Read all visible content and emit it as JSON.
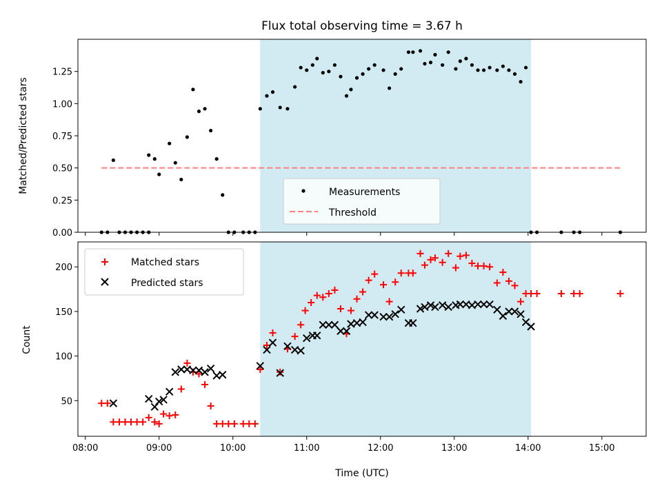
{
  "chart_data": {
    "title": "Flux total observing time = 3.67 h",
    "xlabel": "Time (UTC)",
    "x_ticks": [
      "08:00",
      "09:00",
      "10:00",
      "11:00",
      "12:00",
      "13:00",
      "14:00",
      "15:00"
    ],
    "x_tick_hours": [
      8,
      9,
      10,
      11,
      12,
      13,
      14,
      15
    ],
    "xlim_hours": [
      7.9,
      15.6
    ],
    "shaded_interval_hours": [
      10.37,
      14.04
    ],
    "colors": {
      "shade": "#add8e6",
      "measurements": "#000000",
      "threshold": "#ff7f7f",
      "matched": "#ff0000",
      "predicted": "#000000"
    },
    "panels": [
      {
        "type": "scatter",
        "ylabel": "Matched/Predicted stars",
        "ylim": [
          0,
          1.5
        ],
        "y_ticks": [
          "0.00",
          "0.25",
          "0.50",
          "0.75",
          "1.00",
          "1.25"
        ],
        "y_tick_values": [
          0,
          0.25,
          0.5,
          0.75,
          1.0,
          1.25
        ],
        "threshold": {
          "value": 0.5,
          "x_range_hours": [
            8.22,
            15.25
          ]
        },
        "legend": [
          "Measurements",
          "Threshold"
        ],
        "series": [
          {
            "name": "Measurements",
            "x": [
              8.22,
              8.3,
              8.38,
              8.46,
              8.54,
              8.62,
              8.7,
              8.78,
              8.86,
              8.86,
              8.94,
              9.0,
              9.14,
              9.22,
              9.3,
              9.38,
              9.46,
              9.54,
              9.62,
              9.7,
              9.78,
              9.86,
              9.94,
              10.02,
              10.14,
              10.22,
              10.3,
              10.37,
              10.46,
              10.54,
              10.64,
              10.74,
              10.84,
              10.92,
              11.0,
              11.08,
              11.14,
              11.22,
              11.3,
              11.38,
              11.46,
              11.54,
              11.6,
              11.68,
              11.76,
              11.84,
              11.92,
              12.04,
              12.12,
              12.2,
              12.28,
              12.38,
              12.44,
              12.54,
              12.6,
              12.68,
              12.74,
              12.84,
              12.92,
              13.02,
              13.08,
              13.16,
              13.24,
              13.32,
              13.4,
              13.48,
              13.58,
              13.66,
              13.74,
              13.82,
              13.9,
              13.97,
              14.04,
              14.12,
              14.45,
              14.62,
              14.7,
              15.25
            ],
            "y": [
              0,
              0,
              0.56,
              0,
              0,
              0,
              0,
              0,
              0,
              0.6,
              0.57,
              0.45,
              0.69,
              0.54,
              0.41,
              0.74,
              1.11,
              0.94,
              0.96,
              0.79,
              0.57,
              0.29,
              0,
              0,
              0,
              0,
              0,
              0.96,
              1.06,
              1.09,
              0.97,
              0.96,
              1.13,
              1.28,
              1.26,
              1.3,
              1.35,
              1.24,
              1.25,
              1.3,
              1.21,
              1.06,
              1.11,
              1.2,
              1.23,
              1.27,
              1.3,
              1.26,
              1.12,
              1.23,
              1.27,
              1.4,
              1.4,
              1.41,
              1.31,
              1.32,
              1.38,
              1.3,
              1.4,
              1.27,
              1.33,
              1.35,
              1.3,
              1.26,
              1.26,
              1.28,
              1.26,
              1.29,
              1.26,
              1.23,
              1.17,
              1.28,
              0,
              0,
              0,
              0,
              0,
              0
            ]
          }
        ]
      },
      {
        "type": "scatter",
        "ylabel": "Count",
        "ylim": [
          10,
          228
        ],
        "y_ticks": [
          "50",
          "100",
          "150",
          "200"
        ],
        "y_tick_values": [
          50,
          100,
          150,
          200
        ],
        "legend": [
          "Matched stars",
          "Predicted stars"
        ],
        "series": [
          {
            "name": "Matched stars",
            "marker": "+",
            "x": [
              8.22,
              8.3,
              8.38,
              8.46,
              8.54,
              8.62,
              8.7,
              8.78,
              8.86,
              8.94,
              9.0,
              9.06,
              9.14,
              9.22,
              9.3,
              9.38,
              9.46,
              9.54,
              9.62,
              9.7,
              9.78,
              9.86,
              9.94,
              10.02,
              10.14,
              10.22,
              10.3,
              10.37,
              10.46,
              10.54,
              10.64,
              10.74,
              10.84,
              10.92,
              10.98,
              11.06,
              11.14,
              11.22,
              11.3,
              11.38,
              11.46,
              11.54,
              11.6,
              11.68,
              11.76,
              11.84,
              11.92,
              12.04,
              12.12,
              12.2,
              12.28,
              12.38,
              12.44,
              12.54,
              12.6,
              12.68,
              12.74,
              12.84,
              12.92,
              13.02,
              13.08,
              13.16,
              13.24,
              13.32,
              13.4,
              13.48,
              13.58,
              13.66,
              13.74,
              13.82,
              13.9,
              13.97,
              14.04,
              14.12,
              14.45,
              14.62,
              14.7,
              15.25
            ],
            "y": [
              47,
              47,
              26,
              26,
              26,
              26,
              26,
              26,
              31,
              26,
              24,
              35,
              33,
              34,
              63,
              92,
              82,
              80,
              68,
              44,
              24,
              24,
              24,
              24,
              24,
              24,
              24,
              85,
              112,
              126,
              82,
              108,
              122,
              135,
              151,
              160,
              168,
              166,
              170,
              174,
              153,
              125,
              151,
              164,
              172,
              185,
              192,
              180,
              161,
              183,
              193,
              193,
              193,
              215,
              202,
              208,
              210,
              205,
              215,
              199,
              212,
              213,
              204,
              201,
              201,
              200,
              182,
              194,
              184,
              179,
              161,
              170,
              170,
              170,
              170,
              170,
              170,
              170
            ]
          },
          {
            "name": "Predicted stars",
            "marker": "x",
            "x": [
              8.38,
              8.86,
              8.94,
              9.0,
              9.06,
              9.14,
              9.22,
              9.3,
              9.38,
              9.46,
              9.54,
              9.62,
              9.7,
              9.78,
              9.86,
              10.37,
              10.46,
              10.54,
              10.64,
              10.74,
              10.84,
              10.92,
              11.0,
              11.08,
              11.14,
              11.22,
              11.3,
              11.38,
              11.46,
              11.54,
              11.6,
              11.68,
              11.76,
              11.84,
              11.92,
              12.04,
              12.12,
              12.2,
              12.28,
              12.38,
              12.44,
              12.54,
              12.6,
              12.68,
              12.74,
              12.84,
              12.92,
              13.02,
              13.08,
              13.16,
              13.24,
              13.32,
              13.4,
              13.48,
              13.58,
              13.66,
              13.74,
              13.82,
              13.9,
              13.97,
              14.04
            ],
            "y": [
              47,
              52,
              43,
              49,
              51,
              60,
              82,
              85,
              85,
              84,
              84,
              82,
              86,
              78,
              79,
              89,
              107,
              115,
              81,
              111,
              107,
              106,
              120,
              123,
              123,
              135,
              135,
              135,
              128,
              128,
              136,
              137,
              138,
              146,
              146,
              144,
              144,
              147,
              152,
              137,
              137,
              153,
              155,
              157,
              155,
              157,
              155,
              157,
              158,
              158,
              157,
              158,
              158,
              158,
              152,
              145,
              150,
              150,
              147,
              138,
              133
            ]
          }
        ]
      }
    ]
  }
}
